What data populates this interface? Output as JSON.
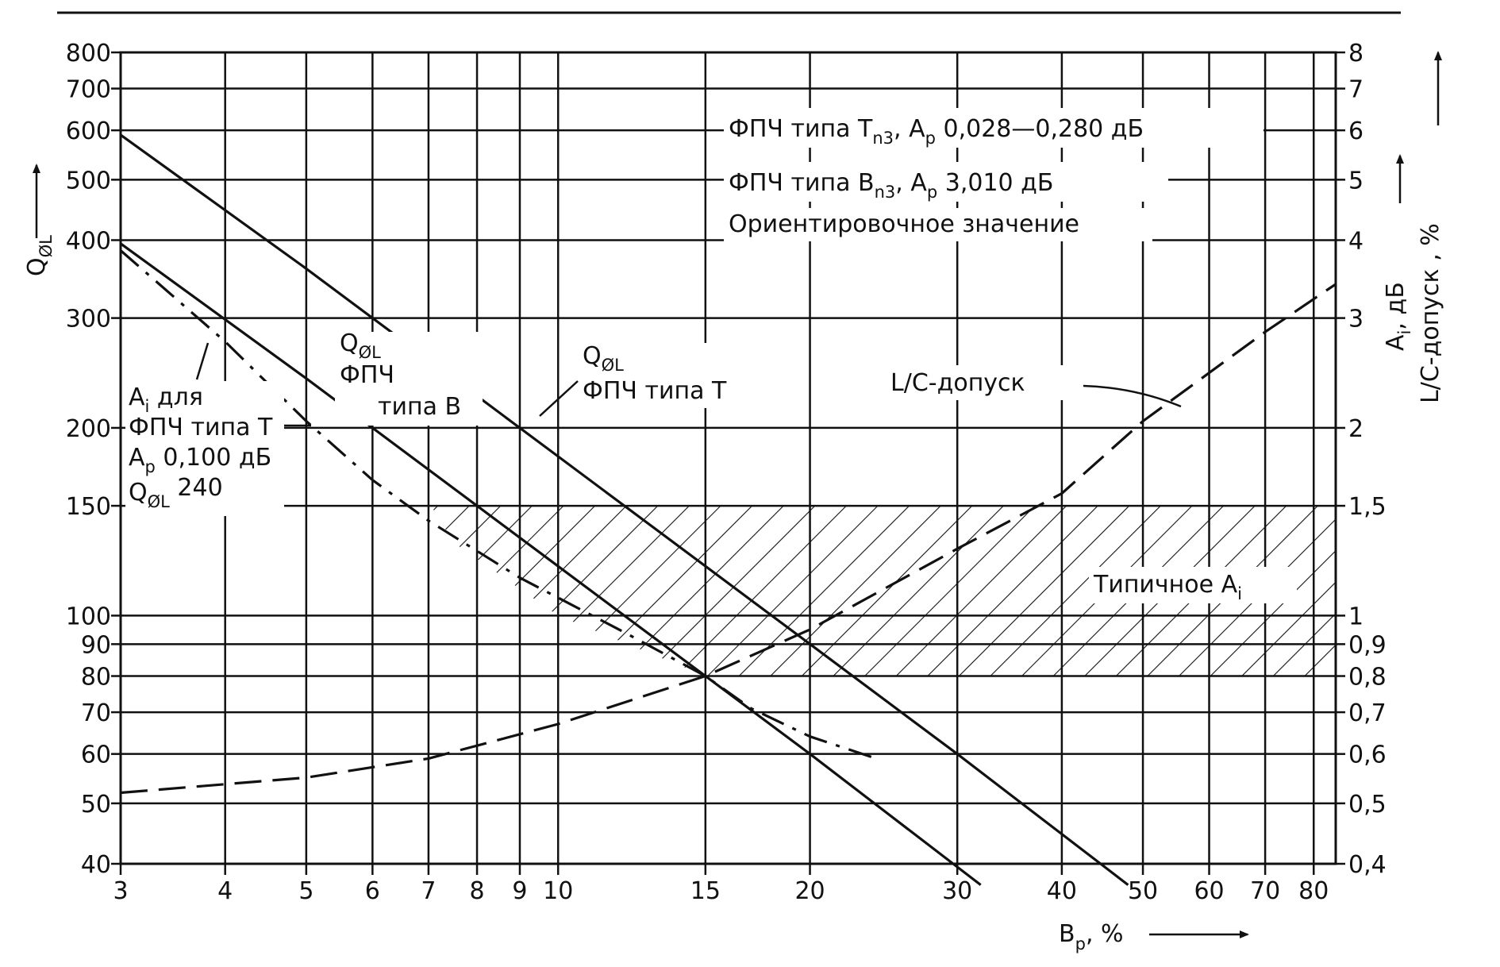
{
  "chart_data": {
    "type": "line",
    "scale": {
      "x": "log",
      "y_left": "log",
      "y_right": "log"
    },
    "grid": true,
    "x_axis": {
      "label": "B",
      "label_sub": "p",
      "label_suffix": ", %",
      "range": [
        3,
        85
      ],
      "ticks": [
        {
          "v": 3,
          "label": "3"
        },
        {
          "v": 4,
          "label": "4"
        },
        {
          "v": 5,
          "label": "5"
        },
        {
          "v": 6,
          "label": "6"
        },
        {
          "v": 7,
          "label": "7"
        },
        {
          "v": 8,
          "label": "8"
        },
        {
          "v": 9,
          "label": "9"
        },
        {
          "v": 10,
          "label": "10"
        },
        {
          "v": 15,
          "label": "15"
        },
        {
          "v": 20,
          "label": "20"
        },
        {
          "v": 30,
          "label": "30"
        },
        {
          "v": 40,
          "label": "40"
        },
        {
          "v": 50,
          "label": "50"
        },
        {
          "v": 60,
          "label": "60"
        },
        {
          "v": 70,
          "label": "70"
        },
        {
          "v": 80,
          "label": "80"
        }
      ]
    },
    "y_left": {
      "label": "Q",
      "label_sub": "ØL",
      "range": [
        40,
        800
      ],
      "ticks": [
        {
          "v": 40,
          "label": "40"
        },
        {
          "v": 50,
          "label": "50"
        },
        {
          "v": 60,
          "label": "60"
        },
        {
          "v": 70,
          "label": "70"
        },
        {
          "v": 80,
          "label": "80"
        },
        {
          "v": 90,
          "label": "90"
        },
        {
          "v": 100,
          "label": "100"
        },
        {
          "v": 150,
          "label": "150"
        },
        {
          "v": 200,
          "label": "200"
        },
        {
          "v": 300,
          "label": "300"
        },
        {
          "v": 400,
          "label": "400"
        },
        {
          "v": 500,
          "label": "500"
        },
        {
          "v": 600,
          "label": "600"
        },
        {
          "v": 700,
          "label": "700"
        },
        {
          "v": 800,
          "label": "800"
        }
      ]
    },
    "y_right": {
      "label_line1": "A",
      "label_line1_sub": "i",
      "label_line1_suffix": ", дБ",
      "label_line2": "L/C-допуск ,  %",
      "range": [
        0.4,
        8
      ],
      "ticks": [
        {
          "v": 0.4,
          "label": "0,4"
        },
        {
          "v": 0.5,
          "label": "0,5"
        },
        {
          "v": 0.6,
          "label": "0,6"
        },
        {
          "v": 0.7,
          "label": "0,7"
        },
        {
          "v": 0.8,
          "label": "0,8"
        },
        {
          "v": 0.9,
          "label": "0,9"
        },
        {
          "v": 1,
          "label": "1"
        },
        {
          "v": 1.5,
          "label": "1,5"
        },
        {
          "v": 2,
          "label": "2"
        },
        {
          "v": 3,
          "label": "3"
        },
        {
          "v": 4,
          "label": "4"
        },
        {
          "v": 5,
          "label": "5"
        },
        {
          "v": 6,
          "label": "6"
        },
        {
          "v": 7,
          "label": "7"
        },
        {
          "v": 8,
          "label": "8"
        }
      ]
    },
    "series": [
      {
        "key": "q_type_t",
        "style": "solid",
        "points": [
          [
            3,
            590
          ],
          [
            5,
            360
          ],
          [
            10,
            180
          ],
          [
            20,
            90
          ],
          [
            30,
            60
          ],
          [
            48,
            37
          ]
        ]
      },
      {
        "key": "q_type_b",
        "style": "solid",
        "points": [
          [
            3,
            395
          ],
          [
            5,
            240
          ],
          [
            10,
            120
          ],
          [
            20,
            60
          ],
          [
            32,
            37
          ]
        ]
      },
      {
        "key": "ai_type_t",
        "style": "dashdot",
        "points": [
          [
            3,
            385
          ],
          [
            4,
            275
          ],
          [
            5,
            205
          ],
          [
            6,
            165
          ],
          [
            7,
            142
          ],
          [
            9,
            115
          ],
          [
            12,
            94
          ],
          [
            15,
            80
          ],
          [
            17,
            71
          ],
          [
            20,
            64
          ],
          [
            24,
            59
          ]
        ]
      },
      {
        "key": "lc_tolerance",
        "style": "dashed",
        "axis": "right",
        "points": [
          [
            3,
            0.52
          ],
          [
            5,
            0.55
          ],
          [
            7,
            0.59
          ],
          [
            10,
            0.67
          ],
          [
            15,
            0.8
          ],
          [
            20,
            0.95
          ],
          [
            30,
            1.28
          ],
          [
            40,
            1.57
          ],
          [
            50,
            2.05
          ],
          [
            70,
            2.85
          ],
          [
            85,
            3.4
          ]
        ]
      }
    ],
    "hatched_band": {
      "axis": "right",
      "y_from": 0.8,
      "y_to": 1.5,
      "x_to": 85
    },
    "annotations": {
      "fpch_t": {
        "t1": "ФПЧ типа Т",
        "t1_sub": "n3",
        "t2": ", A",
        "t2_sub": "p",
        "t3": "  0,028—0,280 дБ"
      },
      "fpch_b": {
        "t1": "ФПЧ типа B",
        "t1_sub": "n3",
        "t2": ", A",
        "t2_sub": "p",
        "t3": "  3,010 дБ"
      },
      "orient": "Ориентировочное значение",
      "ai_label": {
        "l1a": "A",
        "l1sub": "i",
        "l1b": " для",
        "l2": "ФПЧ типа Т",
        "l3a": "A",
        "l3sub": "p",
        "l3b": " 0,100 дБ",
        "l4a": "Q",
        "l4sub": "ØL",
        "l4b": " 240"
      },
      "q_b_label": {
        "l1a": "Q",
        "l1sub": "ØL",
        "l2": "ФПЧ",
        "l3": "типа В"
      },
      "q_t_label": {
        "l1a": "Q",
        "l1sub": "ØL",
        "l2": "ФПЧ типа Т"
      },
      "lc_label": "L/C-допуск",
      "typical_ai": {
        "a": "Типичное A",
        "sub": "i"
      }
    }
  }
}
